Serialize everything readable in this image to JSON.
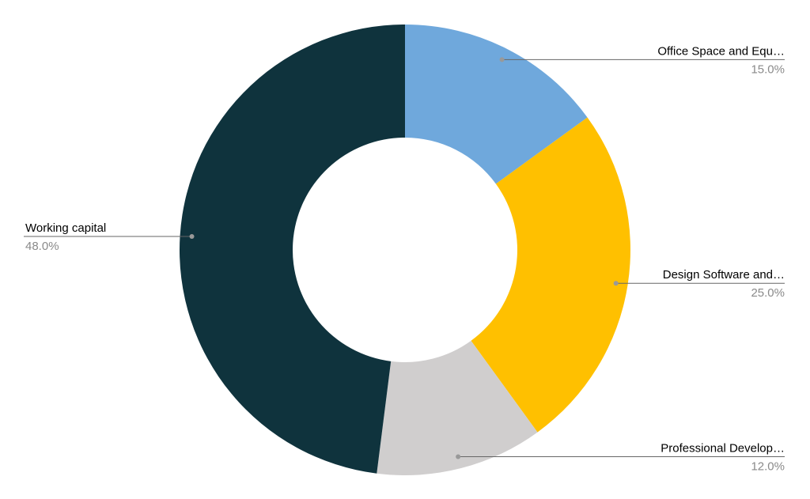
{
  "chart_data": {
    "type": "donut",
    "categories": [
      "Office Space and Equ…",
      "Design Software and…",
      "Professional Develop…",
      "Working capital"
    ],
    "values": [
      15,
      25,
      12,
      48
    ],
    "value_labels": [
      "15.0%",
      "25.0%",
      "12.0%",
      "48.0%"
    ],
    "colors": [
      "#6fa8dc",
      "#ffc000",
      "#d0cece",
      "#0f333d"
    ]
  }
}
